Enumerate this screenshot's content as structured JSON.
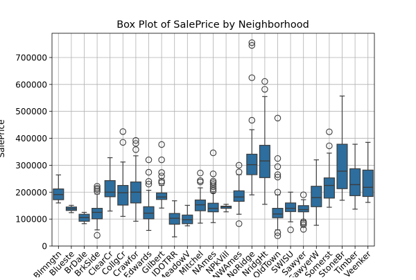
{
  "chart_data": {
    "type": "box",
    "title": "Box Plot of SalePrice by Neighborhood",
    "xlabel": "",
    "ylabel": "SalePrice",
    "ylim": [
      0,
      790000
    ],
    "yticks": [
      0,
      100000,
      200000,
      300000,
      400000,
      500000,
      600000,
      700000
    ],
    "grid": true,
    "box_color": "#2d6e9e",
    "line_color": "#3d3d3d",
    "grid_color": "#b0b0b0",
    "categories": [
      {
        "name": "Blmngtn",
        "q1": 172000,
        "median": 191000,
        "q3": 212000,
        "whisker_low": 160000,
        "whisker_high": 264000,
        "outliers": []
      },
      {
        "name": "Blueste",
        "q1": 132000,
        "median": 138000,
        "q3": 145000,
        "whisker_low": 124000,
        "whisker_high": 151000,
        "outliers": []
      },
      {
        "name": "BrDale",
        "q1": 92000,
        "median": 106000,
        "q3": 118000,
        "whisker_low": 83000,
        "whisker_high": 125000,
        "outliers": []
      },
      {
        "name": "BrkSide",
        "q1": 101000,
        "median": 125000,
        "q3": 140000,
        "whisker_low": 60000,
        "whisker_high": 193000,
        "outliers": [
          40000,
          203000,
          210000,
          215000,
          222000
        ]
      },
      {
        "name": "ClearCr",
        "q1": 183000,
        "median": 200000,
        "q3": 243000,
        "whisker_low": 130000,
        "whisker_high": 328000,
        "outliers": []
      },
      {
        "name": "CollgCr",
        "q1": 152000,
        "median": 198000,
        "q3": 225000,
        "whisker_low": 110000,
        "whisker_high": 312000,
        "outliers": [
          385000,
          425000
        ]
      },
      {
        "name": "Crawfor",
        "q1": 160000,
        "median": 200000,
        "q3": 238000,
        "whisker_low": 92000,
        "whisker_high": 335000,
        "outliers": [
          358000,
          381000,
          392000
        ]
      },
      {
        "name": "Edwards",
        "q1": 101000,
        "median": 122000,
        "q3": 146000,
        "whisker_low": 58000,
        "whisker_high": 207000,
        "outliers": [
          230000,
          240000,
          274000,
          320000
        ]
      },
      {
        "name": "Gilbert",
        "q1": 173000,
        "median": 182000,
        "q3": 197000,
        "whisker_low": 141000,
        "whisker_high": 225000,
        "outliers": [
          235000,
          241000,
          260000,
          273000,
          320000,
          377000
        ]
      },
      {
        "name": "IDOTRR",
        "q1": 81000,
        "median": 103000,
        "q3": 121000,
        "whisker_low": 34000,
        "whisker_high": 168000,
        "outliers": []
      },
      {
        "name": "MeadowV",
        "q1": 83000,
        "median": 98000,
        "q3": 115000,
        "whisker_low": 75000,
        "whisker_high": 151000,
        "outliers": []
      },
      {
        "name": "Mitchel",
        "q1": 131000,
        "median": 153000,
        "q3": 171000,
        "whisker_low": 85000,
        "whisker_high": 216000,
        "outliers": [
          238000,
          243000,
          271000
        ]
      },
      {
        "name": "NAmes",
        "q1": 127000,
        "median": 140000,
        "q3": 159000,
        "whisker_low": 87000,
        "whisker_high": 197000,
        "outliers": [
          205000,
          212000,
          220000,
          228000,
          235000,
          241000,
          268000,
          346000
        ]
      },
      {
        "name": "NPkVill",
        "q1": 140000,
        "median": 146000,
        "q3": 148000,
        "whisker_low": 127000,
        "whisker_high": 155000,
        "outliers": []
      },
      {
        "name": "NWAmes",
        "q1": 166000,
        "median": 182000,
        "q3": 205000,
        "whisker_low": 118000,
        "whisker_high": 265000,
        "outliers": [
          83000,
          275000,
          300000
        ]
      },
      {
        "name": "NoRidge",
        "q1": 265000,
        "median": 302000,
        "q3": 341000,
        "whisker_low": 190000,
        "whisker_high": 432000,
        "outliers": [
          467000,
          625000,
          745000,
          755000
        ]
      },
      {
        "name": "NridgHt",
        "q1": 254000,
        "median": 316000,
        "q3": 374000,
        "whisker_low": 155000,
        "whisker_high": 555000,
        "outliers": [
          582000,
          611000
        ]
      },
      {
        "name": "OldTown",
        "q1": 105000,
        "median": 119000,
        "q3": 140000,
        "whisker_low": 60000,
        "whisker_high": 190000,
        "outliers": [
          38000,
          50000,
          200000,
          256000,
          265000,
          295000,
          325000,
          475000
        ]
      },
      {
        "name": "SWISU",
        "q1": 128000,
        "median": 140000,
        "q3": 160000,
        "whisker_low": 90000,
        "whisker_high": 200000,
        "outliers": [
          60000
        ]
      },
      {
        "name": "Sawyer",
        "q1": 127000,
        "median": 135000,
        "q3": 150000,
        "whisker_low": 95000,
        "whisker_high": 172000,
        "outliers": [
          62000,
          79000,
          85000,
          90000,
          190000
        ]
      },
      {
        "name": "SawyerW",
        "q1": 146000,
        "median": 180000,
        "q3": 222000,
        "whisker_low": 77000,
        "whisker_high": 320000,
        "outliers": []
      },
      {
        "name": "Somerst",
        "q1": 178000,
        "median": 225000,
        "q3": 253000,
        "whisker_low": 144000,
        "whisker_high": 345000,
        "outliers": [
          372000,
          424000
        ]
      },
      {
        "name": "StoneBr",
        "q1": 213000,
        "median": 278000,
        "q3": 378000,
        "whisker_low": 170000,
        "whisker_high": 557000,
        "outliers": []
      },
      {
        "name": "Timber",
        "q1": 187000,
        "median": 228000,
        "q3": 287000,
        "whisker_low": 137000,
        "whisker_high": 378000,
        "outliers": []
      },
      {
        "name": "Veenker",
        "q1": 184000,
        "median": 218000,
        "q3": 282000,
        "whisker_low": 162000,
        "whisker_high": 385000,
        "outliers": []
      }
    ]
  }
}
